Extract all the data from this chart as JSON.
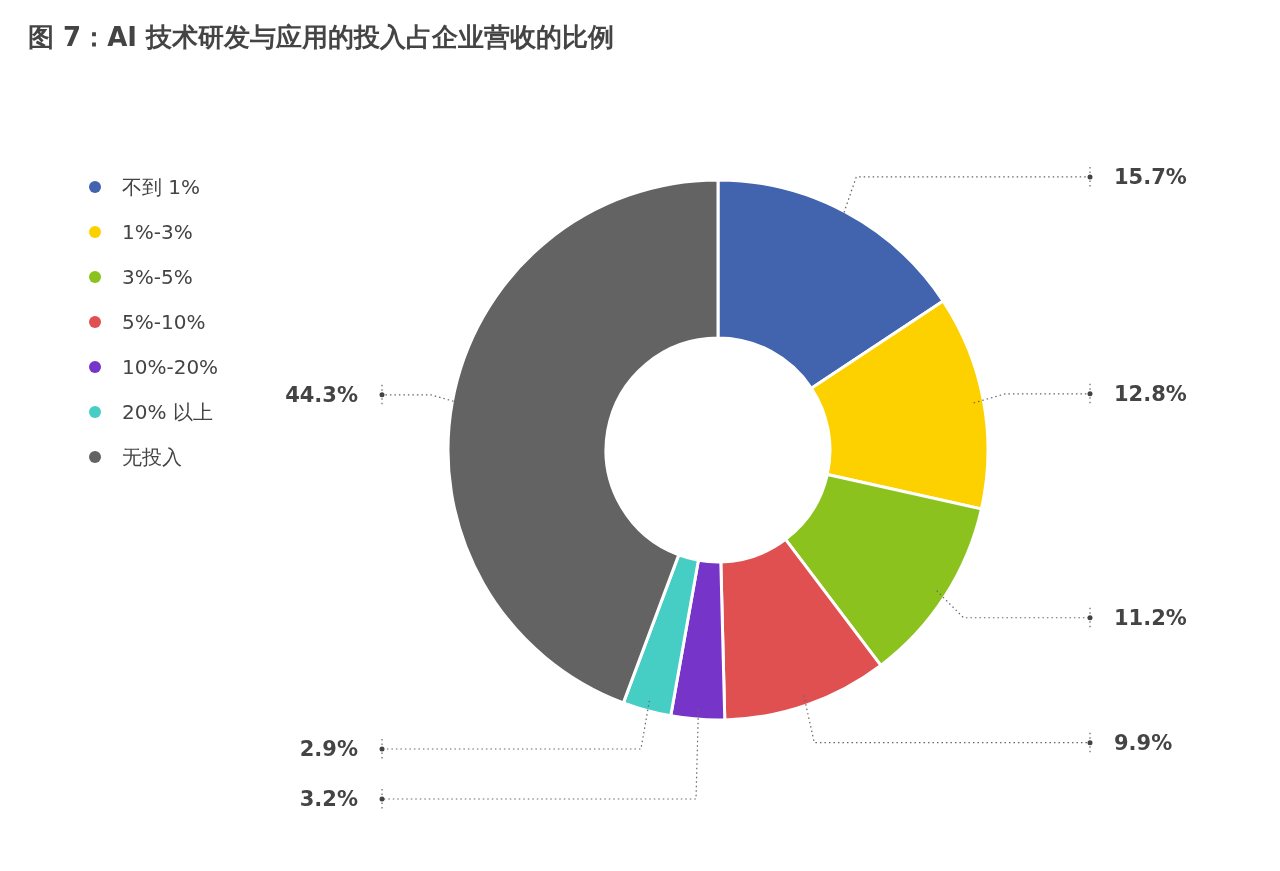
{
  "chart_data": {
    "type": "donut",
    "title": "图 7：AI 技术研发与应用的投入占企业营收的比例",
    "categories": [
      "不到 1%",
      "1%-3%",
      "3%-5%",
      "5%-10%",
      "10%-20%",
      "20% 以上",
      "无投入"
    ],
    "values": [
      15.7,
      12.8,
      11.2,
      9.9,
      3.2,
      2.9,
      44.3
    ],
    "colors": [
      "#4263ae",
      "#fdd000",
      "#8cc21e",
      "#e05050",
      "#7635c8",
      "#46cec4",
      "#646363"
    ],
    "value_labels": [
      "15.7%",
      "12.8%",
      "11.2%",
      "9.9%",
      "3.2%",
      "2.9%",
      "44.3%"
    ],
    "legend": "top left"
  }
}
